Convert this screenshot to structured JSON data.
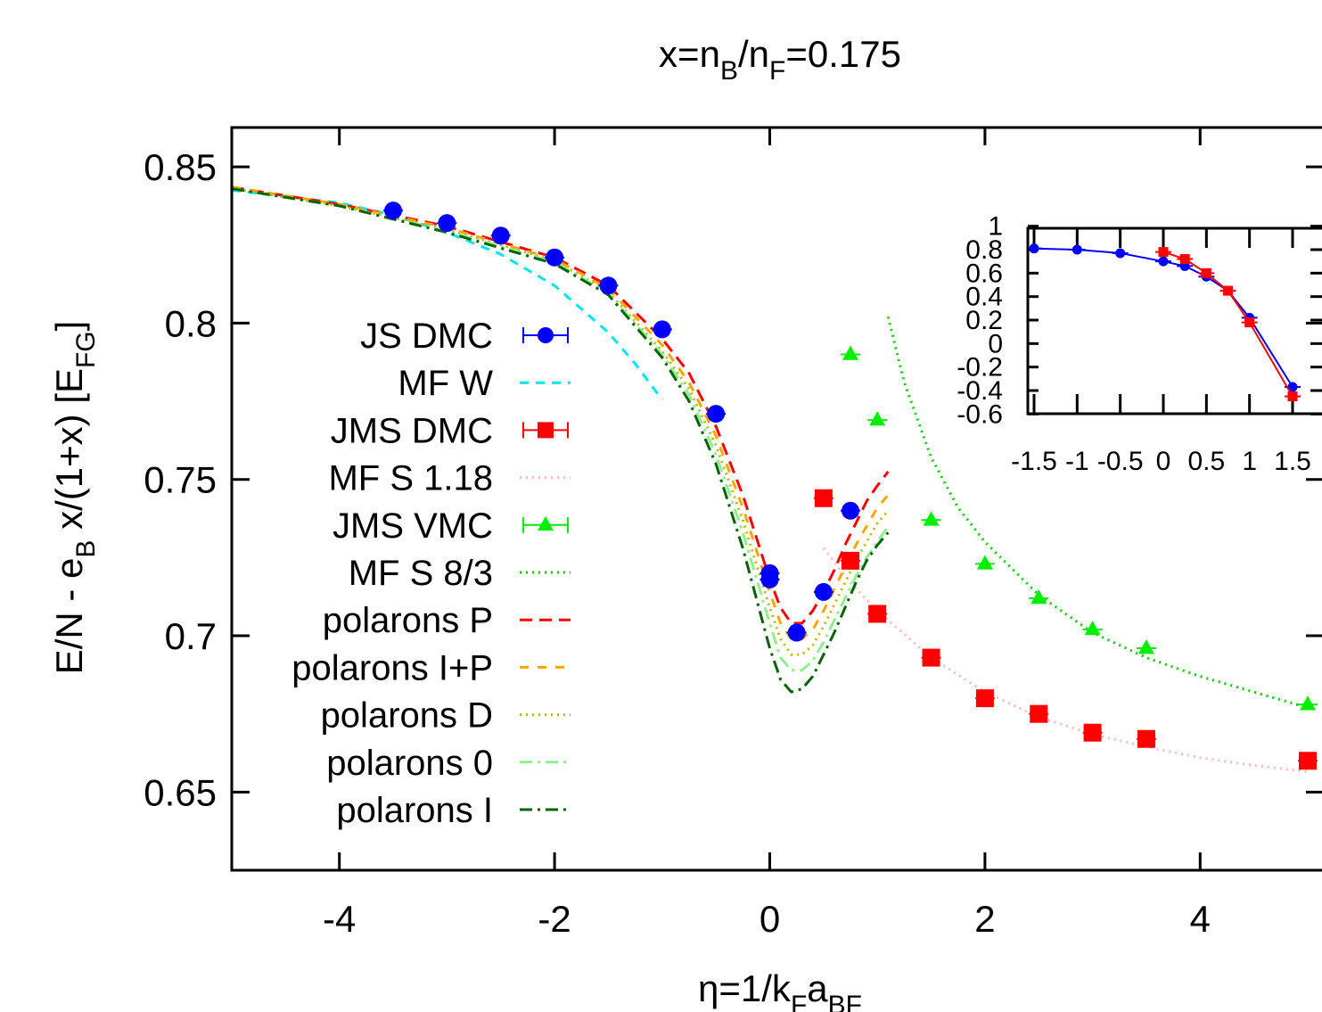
{
  "chart_data": [
    {
      "type": "scatter",
      "title": "x=n_B/n_F=0.175",
      "title_parts": [
        "x=n",
        "B",
        "/n",
        "F",
        "=0.175"
      ],
      "xlabel": "η=1/k_F a_BF",
      "xlabel_parts": [
        "η=1/k",
        "F",
        "a",
        "BF"
      ],
      "ylabel": "E/N - e_B x/(1+x) [E_FG]",
      "ylabel_parts": [
        "E/N - e",
        "B",
        " x/(1+x) [E",
        "FG",
        "]"
      ],
      "xlim": [
        -5,
        5
      ],
      "ylim": [
        0.625,
        0.86
      ],
      "x_ticks": [
        -4,
        -2,
        0,
        2,
        4
      ],
      "x_tick_labels": [
        "-4",
        "-2",
        "0",
        "2",
        "4"
      ],
      "y_ticks": [
        0.65,
        0.7,
        0.75,
        0.8,
        0.85
      ],
      "y_tick_labels": [
        "0.65",
        "0.7",
        "0.75",
        "0.8",
        "0.85"
      ],
      "grid": false,
      "legend_position": "left",
      "series": [
        {
          "name": "JS DMC",
          "kind": "points",
          "marker": "circle",
          "color": "#0000ff",
          "x": [
            -3.5,
            -3.0,
            -2.5,
            -2.0,
            -1.5,
            -1.0,
            -0.5,
            0.0,
            0.0,
            0.25,
            0.5,
            0.75
          ],
          "y": [
            0.836,
            0.832,
            0.828,
            0.821,
            0.812,
            0.798,
            0.771,
            0.72,
            0.718,
            0.701,
            0.714,
            0.74
          ]
        },
        {
          "name": "MF W",
          "kind": "line",
          "dash": "10,8",
          "color": "#00e5ee",
          "x": [
            -5,
            -4,
            -3.5,
            -3,
            -2.5,
            -2,
            -1.5,
            -1.25,
            -1
          ],
          "y": [
            0.8425,
            0.8385,
            0.8345,
            0.829,
            0.822,
            0.812,
            0.797,
            0.787,
            0.7755
          ]
        },
        {
          "name": "JMS DMC",
          "kind": "points",
          "marker": "square",
          "color": "#ff0000",
          "x": [
            0.5,
            0.75,
            1.0,
            1.5,
            2.0,
            2.5,
            3.0,
            3.5,
            5.0
          ],
          "y": [
            0.744,
            0.724,
            0.707,
            0.693,
            0.68,
            0.675,
            0.669,
            0.667,
            0.66
          ]
        },
        {
          "name": "MF S 1.18",
          "kind": "line",
          "dash": "2,5",
          "color": "#ffb6c1",
          "x": [
            0.5,
            0.75,
            1,
            1.5,
            2,
            2.5,
            3,
            3.5,
            4,
            4.5,
            5
          ],
          "y": [
            0.728,
            0.717,
            0.708,
            0.693,
            0.682,
            0.674,
            0.6685,
            0.6645,
            0.661,
            0.6585,
            0.6565
          ]
        },
        {
          "name": "JMS VMC",
          "kind": "points",
          "marker": "triangle",
          "color": "#00ee00",
          "x": [
            0.75,
            1.0,
            1.5,
            2.0,
            2.5,
            3.0,
            3.5,
            5.0
          ],
          "y": [
            0.79,
            0.769,
            0.737,
            0.723,
            0.712,
            0.702,
            0.696,
            0.678
          ]
        },
        {
          "name": "MF S 8/3",
          "kind": "line",
          "dash": "2,5",
          "color": "#00cc00",
          "x": [
            1.1,
            1.25,
            1.5,
            1.75,
            2,
            2.5,
            3,
            3.5,
            4,
            4.5,
            5
          ],
          "y": [
            0.802,
            0.781,
            0.757,
            0.741,
            0.73,
            0.713,
            0.701,
            0.693,
            0.687,
            0.682,
            0.677
          ]
        },
        {
          "name": "polarons P",
          "kind": "line",
          "dash": "14,8",
          "color": "#ff0000",
          "x": [
            -5,
            -4,
            -3,
            -2,
            -1.5,
            -1,
            -0.75,
            -0.5,
            -0.25,
            0,
            0.1,
            0.2,
            0.3,
            0.4,
            0.5,
            0.6,
            0.7,
            0.8,
            0.9,
            1.0,
            1.1
          ],
          "y": [
            0.8435,
            0.838,
            0.831,
            0.821,
            0.812,
            0.795,
            0.784,
            0.767,
            0.745,
            0.718,
            0.709,
            0.704,
            0.704,
            0.708,
            0.714,
            0.721,
            0.729,
            0.736,
            0.743,
            0.748,
            0.7525
          ]
        }
      ]
    },
    {
      "type": "line",
      "title": "",
      "xlim": [
        -1.6,
        1.5
      ],
      "ylim": [
        -0.6,
        1
      ],
      "x_tick_labels": [
        "-1.5",
        "-1",
        "-0.5",
        "0",
        "0.5",
        "1",
        "1.5"
      ],
      "y_tick_labels": [
        "1",
        "0.8",
        "0.6",
        "0.4",
        "0.2",
        "0",
        "-0.2",
        "-0.4",
        "-0.6"
      ],
      "series": [
        {
          "color": "#0000ff",
          "marker": "circle",
          "x": [
            -1.5,
            -1.0,
            -0.5,
            0.0,
            0.25,
            0.5,
            0.75,
            1.0,
            1.5
          ],
          "y": [
            0.81,
            0.8,
            0.77,
            0.7,
            0.66,
            0.57,
            0.45,
            0.22,
            -0.37
          ]
        },
        {
          "color": "#ff0000",
          "marker": "square",
          "x": [
            0.0,
            0.25,
            0.5,
            0.75,
            1.0,
            1.5
          ],
          "y": [
            0.78,
            0.72,
            0.6,
            0.45,
            0.18,
            -0.45
          ]
        }
      ]
    }
  ],
  "extra_curves": [
    {
      "name": "polarons I+P",
      "dash": "10,10",
      "color": "#ffa500",
      "x": [
        -5,
        -4,
        -3,
        -2,
        -1.5,
        -1,
        -0.75,
        -0.5,
        -0.25,
        0,
        0.1,
        0.2,
        0.3,
        0.4,
        0.5,
        0.6,
        0.7,
        0.8,
        0.9,
        1.0,
        1.1
      ],
      "y": [
        0.8435,
        0.838,
        0.8305,
        0.8205,
        0.811,
        0.793,
        0.781,
        0.764,
        0.741,
        0.714,
        0.704,
        0.699,
        0.699,
        0.702,
        0.708,
        0.715,
        0.722,
        0.729,
        0.735,
        0.741,
        0.745
      ]
    },
    {
      "name": "polarons D",
      "dash": "2,5",
      "color": "#b8b800",
      "x": [
        -5,
        -4,
        -3,
        -2,
        -1.5,
        -1,
        -0.75,
        -0.5,
        -0.25,
        0,
        0.1,
        0.2,
        0.3,
        0.4,
        0.5,
        0.6,
        0.7,
        0.8,
        0.9,
        1.0,
        1.1
      ],
      "y": [
        0.843,
        0.8375,
        0.83,
        0.82,
        0.81,
        0.791,
        0.779,
        0.761,
        0.737,
        0.709,
        0.699,
        0.694,
        0.694,
        0.697,
        0.703,
        0.71,
        0.717,
        0.724,
        0.73,
        0.736,
        0.74
      ]
    },
    {
      "name": "polarons 0",
      "dash": "14,6,3,6",
      "color": "#90ee90",
      "x": [
        -5,
        -4,
        -3,
        -2,
        -1.5,
        -1,
        -0.75,
        -0.5,
        -0.25,
        0,
        0.1,
        0.2,
        0.3,
        0.4,
        0.5,
        0.6,
        0.7,
        0.8,
        0.9,
        1.0,
        1.1
      ],
      "y": [
        0.843,
        0.8375,
        0.8295,
        0.8195,
        0.8095,
        0.79,
        0.777,
        0.758,
        0.733,
        0.704,
        0.693,
        0.689,
        0.689,
        0.692,
        0.698,
        0.705,
        0.712,
        0.719,
        0.725,
        0.73,
        0.735
      ]
    },
    {
      "name": "polarons I",
      "dash": "14,6,3,6",
      "color": "#006400",
      "x": [
        -5,
        -4,
        -3,
        -2,
        -1.5,
        -1,
        -0.75,
        -0.5,
        -0.25,
        0,
        0.1,
        0.2,
        0.3,
        0.4,
        0.5,
        0.6,
        0.7,
        0.8,
        0.9,
        1.0,
        1.1
      ],
      "y": [
        0.843,
        0.8375,
        0.829,
        0.819,
        0.809,
        0.789,
        0.775,
        0.755,
        0.728,
        0.696,
        0.686,
        0.682,
        0.683,
        0.687,
        0.694,
        0.701,
        0.709,
        0.717,
        0.724,
        0.729,
        0.733
      ]
    }
  ],
  "legend": [
    {
      "label": "JS DMC",
      "style": "point",
      "marker": "circle",
      "color": "#0000ff"
    },
    {
      "label": "MF W",
      "style": "line",
      "dash": "10,8",
      "color": "#00e5ee"
    },
    {
      "label": "JMS DMC",
      "style": "point",
      "marker": "square",
      "color": "#ff0000"
    },
    {
      "label": "MF S 1.18",
      "style": "line",
      "dash": "2,5",
      "color": "#ffb6c1"
    },
    {
      "label": "JMS VMC",
      "style": "point",
      "marker": "triangle",
      "color": "#00ee00"
    },
    {
      "label": "MF S 8/3",
      "style": "line",
      "dash": "2,5",
      "color": "#00cc00"
    },
    {
      "label": "polarons P",
      "style": "line",
      "dash": "14,8",
      "color": "#ff0000"
    },
    {
      "label": "polarons I+P",
      "style": "line",
      "dash": "10,10",
      "color": "#ffa500"
    },
    {
      "label": "polarons D",
      "style": "line",
      "dash": "2,5",
      "color": "#b8b800"
    },
    {
      "label": "polarons 0",
      "style": "line",
      "dash": "14,6,3,6",
      "color": "#90ee90"
    },
    {
      "label": "polarons I",
      "style": "line",
      "dash": "14,6,3,6",
      "color": "#006400"
    }
  ]
}
